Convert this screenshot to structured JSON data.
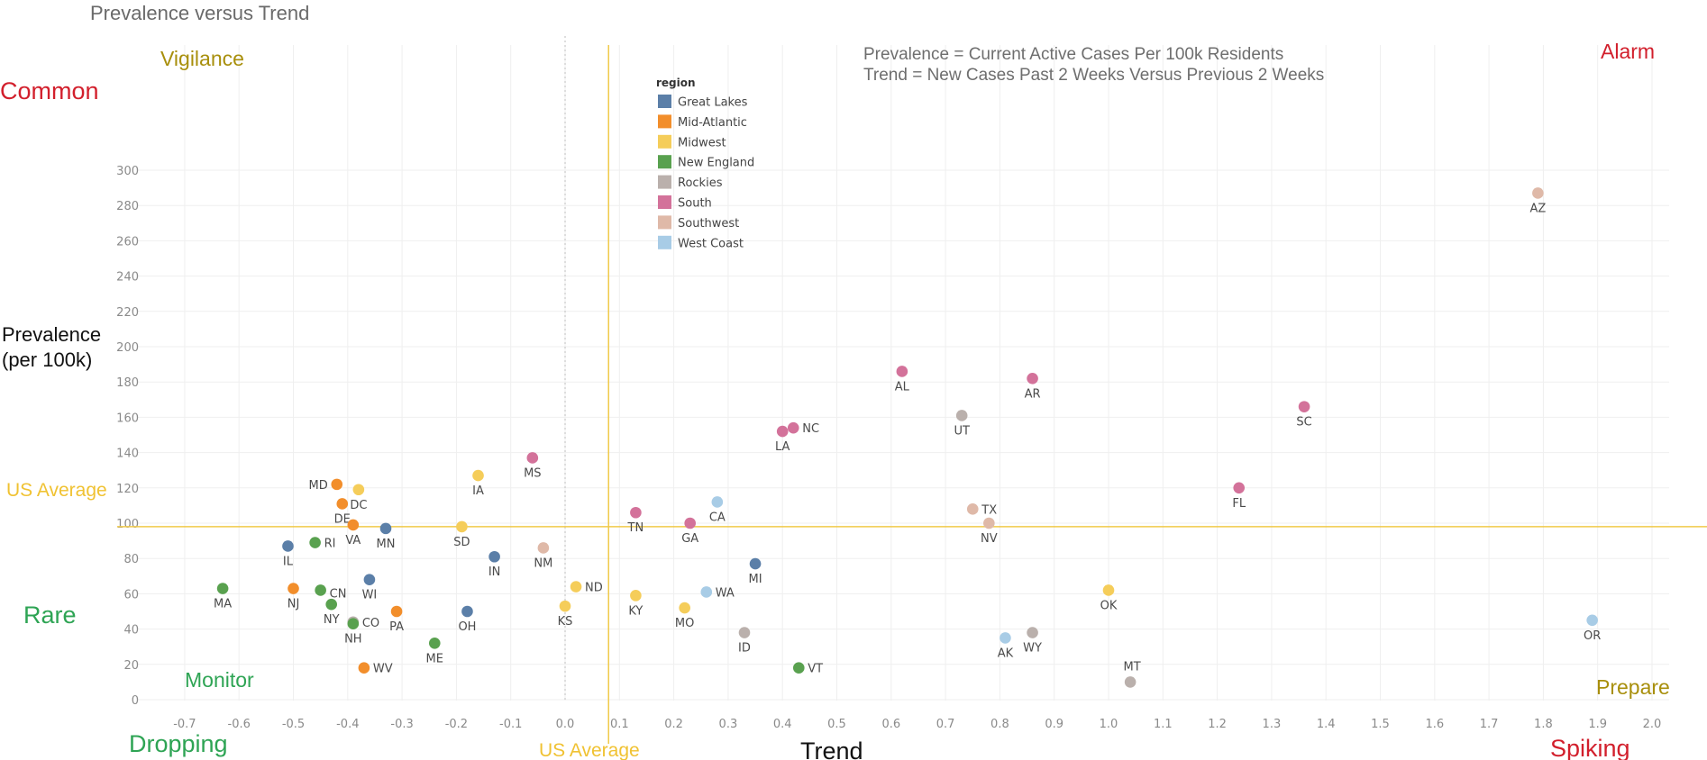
{
  "chart_data": {
    "type": "scatter",
    "title": "Prevalence versus Trend",
    "xlabel": "Trend",
    "ylabel_lines": [
      "Prevalence",
      "(per 100k)"
    ],
    "xlim": [
      -0.78,
      2.03
    ],
    "ylim": [
      -2,
      302
    ],
    "x_ticks": [
      -0.7,
      -0.6,
      -0.5,
      -0.4,
      -0.3,
      -0.2,
      -0.1,
      0.0,
      0.1,
      0.2,
      0.3,
      0.4,
      0.5,
      0.6,
      0.7,
      0.8,
      0.9,
      1.0,
      1.1,
      1.2,
      1.3,
      1.4,
      1.5,
      1.6,
      1.7,
      1.8,
      1.9,
      2.0
    ],
    "y_ticks": [
      0,
      20,
      40,
      60,
      80,
      100,
      120,
      140,
      160,
      180,
      200,
      220,
      240,
      260,
      280,
      300
    ],
    "us_average": {
      "x": 0.08,
      "y": 98,
      "label": "US Average"
    },
    "notes": [
      "Prevalence = Current Active Cases Per 100k Residents",
      "Trend = New Cases Past 2 Weeks Versus Previous 2 Weeks"
    ],
    "quadrant_labels": {
      "vigilance": "Vigilance",
      "alarm": "Alarm",
      "monitor": "Monitor",
      "prepare": "Prepare",
      "common": "Common",
      "rare": "Rare",
      "dropping": "Dropping",
      "spiking": "Spiking"
    },
    "legend": {
      "title": "region",
      "position": "top-center",
      "items": [
        {
          "name": "Great Lakes",
          "color": "#5b7fa8"
        },
        {
          "name": "Mid-Atlantic",
          "color": "#f28e2b"
        },
        {
          "name": "Midwest",
          "color": "#f5cd5a"
        },
        {
          "name": "New England",
          "color": "#59a14f"
        },
        {
          "name": "Rockies",
          "color": "#bab0ac"
        },
        {
          "name": "South",
          "color": "#d3729a"
        },
        {
          "name": "Southwest",
          "color": "#dfb9a8"
        },
        {
          "name": "West Coast",
          "color": "#a8cce6"
        }
      ]
    },
    "points": [
      {
        "state": "AZ",
        "x": 1.79,
        "y": 287,
        "region": "Southwest"
      },
      {
        "state": "AL",
        "x": 0.62,
        "y": 186,
        "region": "South"
      },
      {
        "state": "AR",
        "x": 0.86,
        "y": 182,
        "region": "South"
      },
      {
        "state": "SC",
        "x": 1.36,
        "y": 166,
        "region": "South"
      },
      {
        "state": "UT",
        "x": 0.73,
        "y": 161,
        "region": "Rockies"
      },
      {
        "state": "LA",
        "x": 0.4,
        "y": 152,
        "region": "South"
      },
      {
        "state": "NC",
        "x": 0.42,
        "y": 154,
        "region": "South"
      },
      {
        "state": "MS",
        "x": -0.06,
        "y": 137,
        "region": "South"
      },
      {
        "state": "IA",
        "x": -0.16,
        "y": 127,
        "region": "Midwest"
      },
      {
        "state": "MD",
        "x": -0.42,
        "y": 122,
        "region": "Mid-Atlantic"
      },
      {
        "state": "DC",
        "x": -0.38,
        "y": 119,
        "region": "Midwest"
      },
      {
        "state": "DE",
        "x": -0.41,
        "y": 111,
        "region": "Mid-Atlantic"
      },
      {
        "state": "FL",
        "x": 1.24,
        "y": 120,
        "region": "South"
      },
      {
        "state": "TN",
        "x": 0.13,
        "y": 106,
        "region": "South"
      },
      {
        "state": "CA",
        "x": 0.28,
        "y": 112,
        "region": "West Coast"
      },
      {
        "state": "TX",
        "x": 0.75,
        "y": 108,
        "region": "Southwest"
      },
      {
        "state": "GA",
        "x": 0.23,
        "y": 100,
        "region": "South"
      },
      {
        "state": "NV",
        "x": 0.78,
        "y": 100,
        "region": "Southwest"
      },
      {
        "state": "VA",
        "x": -0.39,
        "y": 99,
        "region": "Mid-Atlantic"
      },
      {
        "state": "MN",
        "x": -0.33,
        "y": 97,
        "region": "Great Lakes"
      },
      {
        "state": "SD",
        "x": -0.19,
        "y": 98,
        "region": "Midwest"
      },
      {
        "state": "IL",
        "x": -0.51,
        "y": 87,
        "region": "Great Lakes"
      },
      {
        "state": "RI",
        "x": -0.46,
        "y": 89,
        "region": "New England"
      },
      {
        "state": "IN",
        "x": -0.13,
        "y": 81,
        "region": "Great Lakes"
      },
      {
        "state": "NM",
        "x": -0.04,
        "y": 86,
        "region": "Southwest"
      },
      {
        "state": "MI",
        "x": 0.35,
        "y": 77,
        "region": "Great Lakes"
      },
      {
        "state": "WI",
        "x": -0.36,
        "y": 68,
        "region": "Great Lakes"
      },
      {
        "state": "MA",
        "x": -0.63,
        "y": 63,
        "region": "New England"
      },
      {
        "state": "NJ",
        "x": -0.5,
        "y": 63,
        "region": "Mid-Atlantic"
      },
      {
        "state": "CN",
        "x": -0.45,
        "y": 62,
        "region": "New England"
      },
      {
        "state": "ND",
        "x": 0.02,
        "y": 64,
        "region": "Midwest"
      },
      {
        "state": "KY",
        "x": 0.13,
        "y": 59,
        "region": "Midwest"
      },
      {
        "state": "WA",
        "x": 0.26,
        "y": 61,
        "region": "West Coast"
      },
      {
        "state": "OK",
        "x": 1.0,
        "y": 62,
        "region": "Midwest"
      },
      {
        "state": "NY",
        "x": -0.43,
        "y": 54,
        "region": "New England"
      },
      {
        "state": "KS",
        "x": 0.0,
        "y": 53,
        "region": "Midwest"
      },
      {
        "state": "MO",
        "x": 0.22,
        "y": 52,
        "region": "Midwest"
      },
      {
        "state": "PA",
        "x": -0.31,
        "y": 50,
        "region": "Mid-Atlantic"
      },
      {
        "state": "OH",
        "x": -0.18,
        "y": 50,
        "region": "Great Lakes"
      },
      {
        "state": "CO",
        "x": -0.39,
        "y": 44,
        "region": "Rockies"
      },
      {
        "state": "NH",
        "x": -0.39,
        "y": 43,
        "region": "New England"
      },
      {
        "state": "OR",
        "x": 1.89,
        "y": 45,
        "region": "West Coast"
      },
      {
        "state": "ID",
        "x": 0.33,
        "y": 38,
        "region": "Rockies"
      },
      {
        "state": "WY",
        "x": 0.86,
        "y": 38,
        "region": "Rockies"
      },
      {
        "state": "AK",
        "x": 0.81,
        "y": 35,
        "region": "West Coast"
      },
      {
        "state": "ME",
        "x": -0.24,
        "y": 32,
        "region": "New England"
      },
      {
        "state": "WV",
        "x": -0.37,
        "y": 18,
        "region": "Mid-Atlantic"
      },
      {
        "state": "VT",
        "x": 0.43,
        "y": 18,
        "region": "New England"
      },
      {
        "state": "MT",
        "x": 1.04,
        "y": 10,
        "region": "Rockies"
      }
    ]
  }
}
